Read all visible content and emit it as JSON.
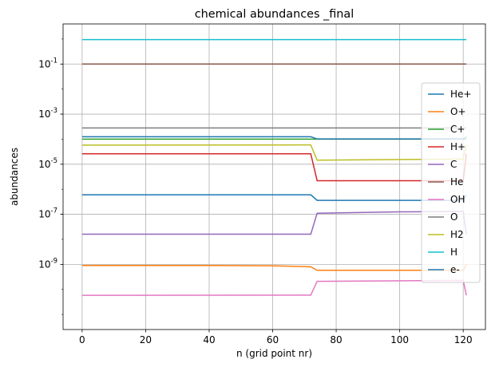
{
  "chart_data": {
    "type": "line",
    "title": "chemical abundances _final",
    "xlabel": "n (grid point nr)",
    "ylabel": "abundances",
    "xlim": [
      -6,
      127
    ],
    "ylim": [
      2.5e-12,
      4.0
    ],
    "yscale": "log",
    "grid": true,
    "legend_position": "right",
    "x_ticks": [
      0,
      20,
      40,
      60,
      80,
      100,
      120
    ],
    "x_tick_labels": [
      "0",
      "20",
      "40",
      "60",
      "80",
      "100",
      "120"
    ],
    "y_ticks": [
      1e-09,
      1e-07,
      1e-05,
      0.001,
      0.1
    ],
    "y_tick_labels": [
      "10^-9",
      "10^-7",
      "10^-5",
      "10^-3",
      "10^-1"
    ],
    "series": [
      {
        "name": "He+",
        "color": "#1f77b4",
        "points": [
          [
            0,
            6e-07
          ],
          [
            72,
            6e-07
          ],
          [
            74,
            3.6e-07
          ],
          [
            120,
            3.6e-07
          ],
          [
            121,
            6e-07
          ]
        ]
      },
      {
        "name": "O+",
        "color": "#ff7f0e",
        "points": [
          [
            0,
            9e-10
          ],
          [
            40,
            9e-10
          ],
          [
            60,
            8.8e-10
          ],
          [
            72,
            8e-10
          ],
          [
            74,
            5.8e-10
          ],
          [
            120,
            5.8e-10
          ],
          [
            121,
            1e-09
          ]
        ]
      },
      {
        "name": "C+",
        "color": "#2ca02c",
        "points": [
          [
            0,
            0.0001
          ],
          [
            72,
            0.0001
          ],
          [
            74,
            0.0001
          ],
          [
            120,
            0.0001
          ],
          [
            121,
            0.0001
          ]
        ]
      },
      {
        "name": "H+",
        "color": "#d62728",
        "points": [
          [
            0,
            2.6e-05
          ],
          [
            72,
            2.6e-05
          ],
          [
            74,
            2.2e-06
          ],
          [
            120,
            2.2e-06
          ],
          [
            121,
            2.6e-05
          ]
        ]
      },
      {
        "name": "C",
        "color": "#9467bd",
        "points": [
          [
            0,
            1.6e-08
          ],
          [
            72,
            1.6e-08
          ],
          [
            74,
            1.1e-07
          ],
          [
            100,
            1.25e-07
          ],
          [
            120,
            1.3e-07
          ],
          [
            121,
            1.6e-08
          ]
        ]
      },
      {
        "name": "He",
        "color": "#8c564b",
        "points": [
          [
            0,
            0.1
          ],
          [
            121,
            0.1
          ]
        ]
      },
      {
        "name": "OH",
        "color": "#e377c2",
        "points": [
          [
            0,
            5.8e-11
          ],
          [
            72,
            5.9e-11
          ],
          [
            74,
            2.1e-10
          ],
          [
            120,
            2.3e-10
          ],
          [
            121,
            5.8e-11
          ]
        ]
      },
      {
        "name": "O",
        "color": "#7f7f7f",
        "points": [
          [
            0,
            0.00028
          ],
          [
            121,
            0.00028
          ]
        ]
      },
      {
        "name": "H2",
        "color": "#bcbd22",
        "points": [
          [
            0,
            5.8e-05
          ],
          [
            72,
            5.9e-05
          ],
          [
            74,
            1.45e-05
          ],
          [
            120,
            1.6e-05
          ],
          [
            121,
            5.8e-05
          ]
        ]
      },
      {
        "name": "H",
        "color": "#17becf",
        "points": [
          [
            0,
            0.95
          ],
          [
            121,
            0.95
          ]
        ]
      },
      {
        "name": "e-",
        "color": "#1f77b4",
        "points": [
          [
            0,
            0.000125
          ],
          [
            72,
            0.000125
          ],
          [
            74,
            0.000102
          ],
          [
            120,
            0.000102
          ],
          [
            121,
            0.000125
          ]
        ]
      }
    ]
  }
}
